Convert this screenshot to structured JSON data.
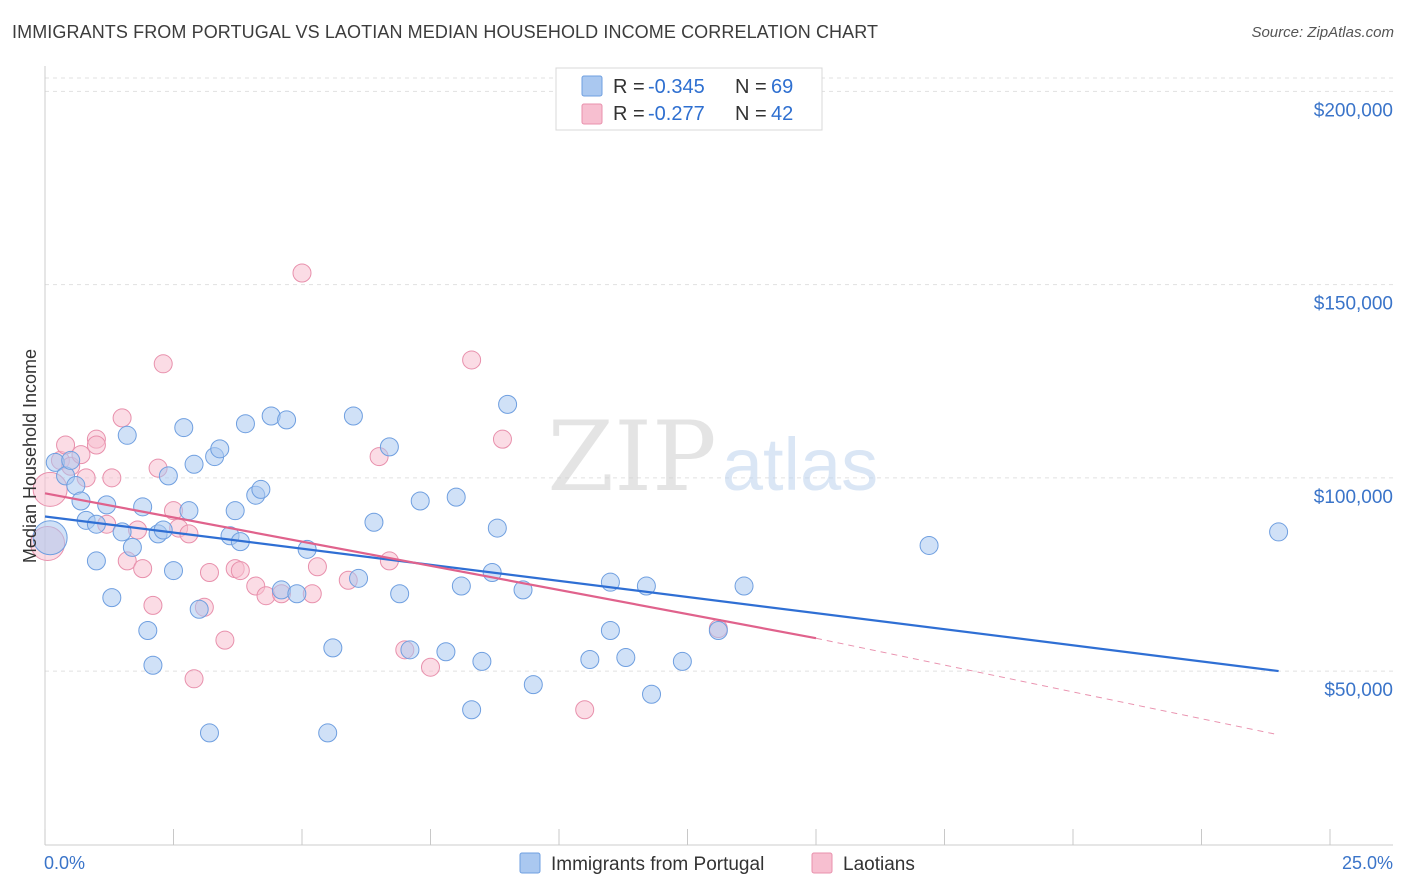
{
  "header": {
    "title": "IMMIGRANTS FROM PORTUGAL VS LAOTIAN MEDIAN HOUSEHOLD INCOME CORRELATION CHART",
    "source": "Source: ZipAtlas.com"
  },
  "watermark": {
    "zip": "ZIP",
    "atlas": "atlas"
  },
  "legend": {
    "rows": [
      {
        "r_label": "R =",
        "r_value": "-0.345",
        "n_label": "N =",
        "n_value": "69"
      },
      {
        "r_label": "R =",
        "r_value": "-0.277",
        "n_label": "N =",
        "n_value": "42"
      }
    ]
  },
  "bottom_legend": {
    "series1": "Immigrants from Portugal",
    "series2": "Laotians"
  },
  "chart_data": {
    "type": "scatter",
    "ylabel": "Median Household Income",
    "xlim": [
      0,
      25
    ],
    "ylim": [
      5000,
      205000
    ],
    "x_tick_labels": [
      "0.0%",
      "25.0%"
    ],
    "y_ticks": [
      {
        "value": 50000,
        "label": "$50,000"
      },
      {
        "value": 100000,
        "label": "$100,000"
      },
      {
        "value": 150000,
        "label": "$150,000"
      },
      {
        "value": 200000,
        "label": "$200,000"
      }
    ],
    "grid": true,
    "colors": {
      "blue_fill": "#aac8f0",
      "blue_stroke": "#6f9fe0",
      "blue_line": "#2f6fd4",
      "pink_fill": "#f7bfd0",
      "pink_stroke": "#e890ac",
      "pink_line": "#e0628c"
    },
    "series": [
      {
        "name": "Immigrants from Portugal",
        "color": "blue",
        "points": [
          [
            0.1,
            84500
          ],
          [
            0.2,
            104000
          ],
          [
            0.4,
            100500
          ],
          [
            0.6,
            98000
          ],
          [
            0.5,
            104500
          ],
          [
            0.7,
            94000
          ],
          [
            0.8,
            89000
          ],
          [
            1.0,
            88000
          ],
          [
            1.0,
            78500
          ],
          [
            1.2,
            93000
          ],
          [
            1.3,
            69000
          ],
          [
            1.5,
            86000
          ],
          [
            1.6,
            111000
          ],
          [
            1.7,
            82000
          ],
          [
            1.9,
            92500
          ],
          [
            2.0,
            60500
          ],
          [
            2.1,
            51500
          ],
          [
            2.2,
            85500
          ],
          [
            2.3,
            86500
          ],
          [
            2.4,
            100500
          ],
          [
            2.5,
            76000
          ],
          [
            2.7,
            113000
          ],
          [
            2.8,
            91500
          ],
          [
            2.9,
            103500
          ],
          [
            3.0,
            66000
          ],
          [
            3.2,
            34000
          ],
          [
            3.3,
            105500
          ],
          [
            3.4,
            107500
          ],
          [
            3.6,
            85000
          ],
          [
            3.7,
            91500
          ],
          [
            3.8,
            83500
          ],
          [
            3.9,
            114000
          ],
          [
            4.1,
            95500
          ],
          [
            4.2,
            97000
          ],
          [
            4.4,
            116000
          ],
          [
            4.6,
            71000
          ],
          [
            4.7,
            115000
          ],
          [
            4.9,
            70000
          ],
          [
            5.1,
            81500
          ],
          [
            5.5,
            34000
          ],
          [
            5.6,
            56000
          ],
          [
            6.0,
            116000
          ],
          [
            6.1,
            74000
          ],
          [
            6.4,
            88500
          ],
          [
            6.7,
            108000
          ],
          [
            6.9,
            70000
          ],
          [
            7.1,
            55500
          ],
          [
            7.3,
            94000
          ],
          [
            7.8,
            55000
          ],
          [
            8.0,
            95000
          ],
          [
            8.1,
            72000
          ],
          [
            8.3,
            40000
          ],
          [
            8.5,
            52500
          ],
          [
            8.7,
            75500
          ],
          [
            8.8,
            87000
          ],
          [
            9.0,
            119000
          ],
          [
            9.3,
            71000
          ],
          [
            9.5,
            46500
          ],
          [
            10.6,
            53000
          ],
          [
            11.0,
            73000
          ],
          [
            11.0,
            60500
          ],
          [
            11.3,
            53500
          ],
          [
            11.7,
            72000
          ],
          [
            11.8,
            44000
          ],
          [
            12.4,
            52500
          ],
          [
            13.1,
            60500
          ],
          [
            13.6,
            72000
          ],
          [
            17.2,
            82500
          ],
          [
            24.0,
            86000
          ]
        ]
      },
      {
        "name": "Laotians",
        "color": "pink",
        "points": [
          [
            0.05,
            83000
          ],
          [
            0.1,
            97000
          ],
          [
            0.3,
            104500
          ],
          [
            0.4,
            108500
          ],
          [
            0.5,
            103000
          ],
          [
            0.7,
            106000
          ],
          [
            0.8,
            100000
          ],
          [
            1.0,
            110000
          ],
          [
            1.0,
            108500
          ],
          [
            1.2,
            88000
          ],
          [
            1.3,
            100000
          ],
          [
            1.5,
            115500
          ],
          [
            1.6,
            78500
          ],
          [
            1.8,
            86500
          ],
          [
            1.9,
            76500
          ],
          [
            2.1,
            67000
          ],
          [
            2.2,
            102500
          ],
          [
            2.3,
            129500
          ],
          [
            2.5,
            91500
          ],
          [
            2.6,
            87000
          ],
          [
            2.8,
            85500
          ],
          [
            2.9,
            48000
          ],
          [
            3.1,
            66500
          ],
          [
            3.2,
            75500
          ],
          [
            3.5,
            58000
          ],
          [
            3.7,
            76500
          ],
          [
            3.8,
            76000
          ],
          [
            4.1,
            72000
          ],
          [
            4.3,
            69500
          ],
          [
            4.6,
            70000
          ],
          [
            5.0,
            153000
          ],
          [
            5.2,
            70000
          ],
          [
            5.3,
            77000
          ],
          [
            5.9,
            73500
          ],
          [
            6.5,
            105500
          ],
          [
            6.7,
            78500
          ],
          [
            7.0,
            55500
          ],
          [
            7.5,
            51000
          ],
          [
            8.3,
            130500
          ],
          [
            8.9,
            110000
          ],
          [
            10.5,
            40000
          ],
          [
            13.1,
            61000
          ]
        ]
      }
    ],
    "trend_lines": [
      {
        "series": "Immigrants from Portugal",
        "x": [
          0,
          24
        ],
        "y": [
          90000,
          50000
        ],
        "style": "solid"
      },
      {
        "series": "Laotians",
        "x": [
          0,
          15
        ],
        "y": [
          96000,
          58500
        ],
        "style": "solid"
      },
      {
        "series": "Laotians",
        "x": [
          15,
          24
        ],
        "y": [
          58500,
          33500
        ],
        "style": "dashed"
      }
    ]
  }
}
